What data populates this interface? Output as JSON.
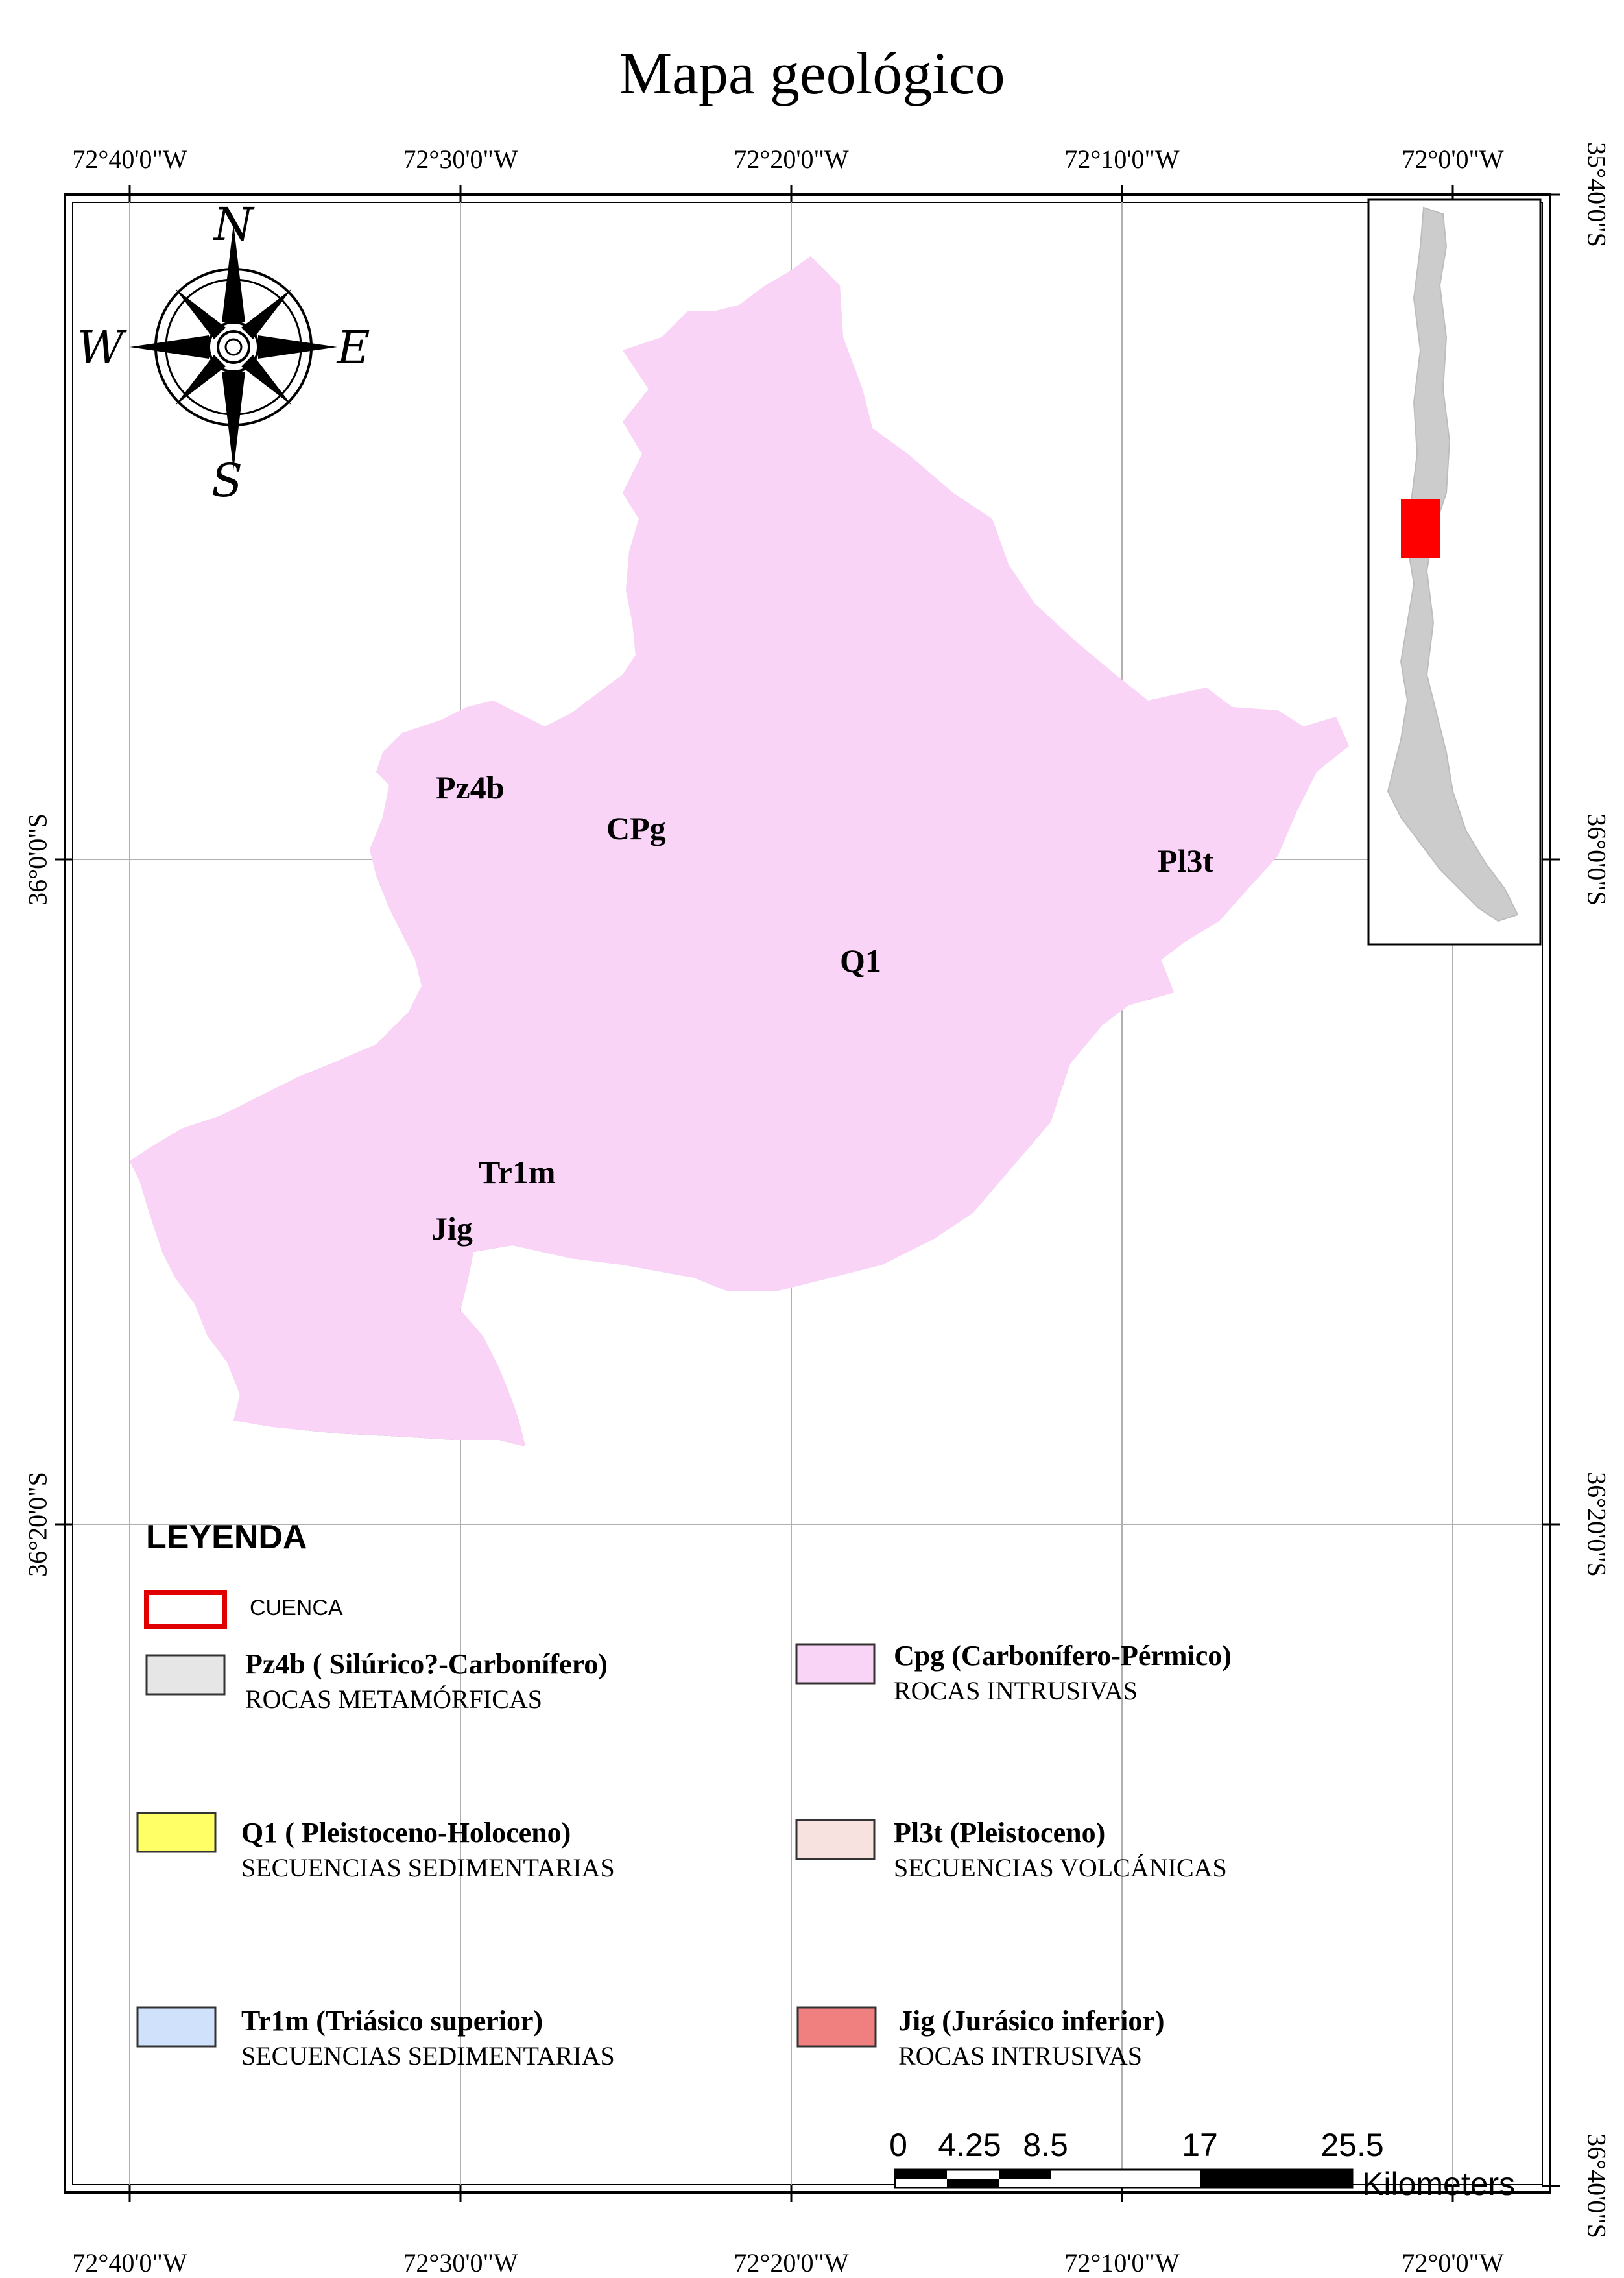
{
  "title": "Mapa geológico",
  "graticule": {
    "lon_labels": [
      "72°40'0\"W",
      "72°30'0\"W",
      "72°20'0\"W",
      "72°10'0\"W",
      "72°0'0\"W"
    ],
    "lat_labels_left": [
      "36°0'0\"S",
      "36°20'0\"S"
    ],
    "lat_labels_right": [
      "35°40'0\"S",
      "36°0'0\"S",
      "36°20'0\"S",
      "36°40'0\"S"
    ]
  },
  "compass": {
    "north": "N",
    "south": "S",
    "east": "E",
    "west": "W"
  },
  "map_labels": {
    "pz4b": "Pz4b",
    "cpg": "CPg",
    "q1": "Q1",
    "pl3t": "Pl3t",
    "tr1m": "Tr1m",
    "jig": "Jig"
  },
  "colors": {
    "pz4b": "#e6e6e6",
    "cpg": "#f9d4f7",
    "q1": "#ffff66",
    "pl3t": "#f7e2df",
    "tr1m": "#cfe1fb",
    "jig": "#f08080",
    "cuenca_border": "#e00000",
    "inset_country": "#cccccc",
    "inset_highlight": "#ff0000"
  },
  "legend": {
    "title": "LEYENDA",
    "cuenca": "CUENCA",
    "items": [
      {
        "name": "Pz4b ( Silúrico?-Carbonífero)",
        "desc": "ROCAS METAMÓRFICAS",
        "color_key": "pz4b"
      },
      {
        "name": "Cpg (Carbonífero-Pérmico)",
        "desc": "ROCAS INTRUSIVAS",
        "color_key": "cpg"
      },
      {
        "name": "Q1 ( Pleistoceno-Holoceno)",
        "desc": "SECUENCIAS SEDIMENTARIAS",
        "color_key": "q1"
      },
      {
        "name": "Pl3t (Pleistoceno)",
        "desc": "SECUENCIAS VOLCÁNICAS",
        "color_key": "pl3t"
      },
      {
        "name": "Tr1m (Triásico superior)",
        "desc": "SECUENCIAS SEDIMENTARIAS",
        "color_key": "tr1m"
      },
      {
        "name": "Jig (Jurásico inferior)",
        "desc": "ROCAS INTRUSIVAS",
        "color_key": "jig"
      }
    ]
  },
  "scale_bar": {
    "ticks": [
      "0",
      "4.25",
      "8.5",
      "17",
      "25.5"
    ],
    "unit": "Kilometers"
  }
}
